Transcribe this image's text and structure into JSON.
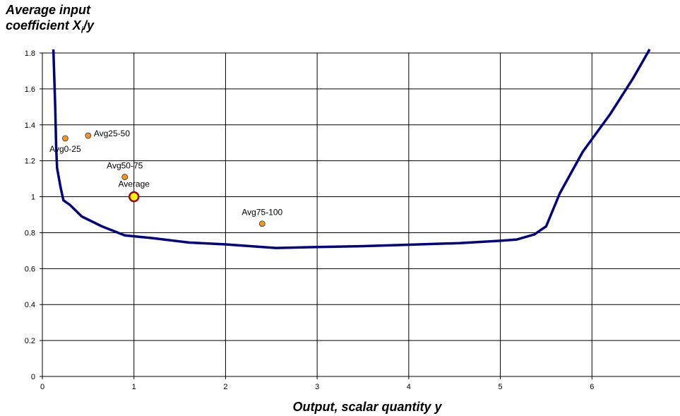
{
  "chart_data": {
    "type": "scatter",
    "ylabel_line1": "Average input",
    "ylabel_line2_main": "coefficient X",
    "ylabel_line2_sub": "i",
    "ylabel_line2_tail": "/y",
    "xlabel": "Output, scalar quantity y",
    "xlim": [
      0,
      7
    ],
    "ylim": [
      0,
      1.8
    ],
    "x_ticks": [
      0,
      1,
      2,
      3,
      4,
      5,
      6
    ],
    "y_ticks": [
      0,
      0.2,
      0.4,
      0.6,
      0.8,
      1,
      1.2,
      1.4,
      1.6,
      1.8
    ],
    "grid": true,
    "curve": {
      "color": "#000080",
      "points": [
        [
          0.12,
          1.82
        ],
        [
          0.14,
          1.5
        ],
        [
          0.15,
          1.28
        ],
        [
          0.16,
          1.16
        ],
        [
          0.2,
          1.05
        ],
        [
          0.23,
          0.98
        ],
        [
          0.3,
          0.955
        ],
        [
          0.43,
          0.89
        ],
        [
          0.65,
          0.835
        ],
        [
          0.9,
          0.785
        ],
        [
          1.2,
          0.77
        ],
        [
          1.6,
          0.745
        ],
        [
          2.0,
          0.735
        ],
        [
          2.55,
          0.715
        ],
        [
          3.0,
          0.72
        ],
        [
          3.5,
          0.725
        ],
        [
          4.0,
          0.733
        ],
        [
          4.55,
          0.742
        ],
        [
          5.0,
          0.755
        ],
        [
          5.18,
          0.762
        ],
        [
          5.37,
          0.79
        ],
        [
          5.5,
          0.835
        ],
        [
          5.65,
          1.02
        ],
        [
          5.9,
          1.25
        ],
        [
          6.2,
          1.46
        ],
        [
          6.45,
          1.66
        ],
        [
          6.63,
          1.82
        ]
      ]
    },
    "points": [
      {
        "label": "Avg0-25",
        "x": 0.25,
        "y": 1.325,
        "label_pos": "below"
      },
      {
        "label": "Avg25-50",
        "x": 0.5,
        "y": 1.34,
        "label_pos": "right"
      },
      {
        "label": "Avg50-75",
        "x": 0.9,
        "y": 1.11,
        "label_pos": "above"
      },
      {
        "label": "Average",
        "x": 1.0,
        "y": 1.0,
        "label_pos": "above",
        "highlight": true
      },
      {
        "label": "Avg75-100",
        "x": 2.4,
        "y": 0.85,
        "label_pos": "above"
      }
    ],
    "point_color": "#F7941D",
    "highlight_ring_color": "#A0001E",
    "highlight_fill_color": "#FFFF00"
  }
}
